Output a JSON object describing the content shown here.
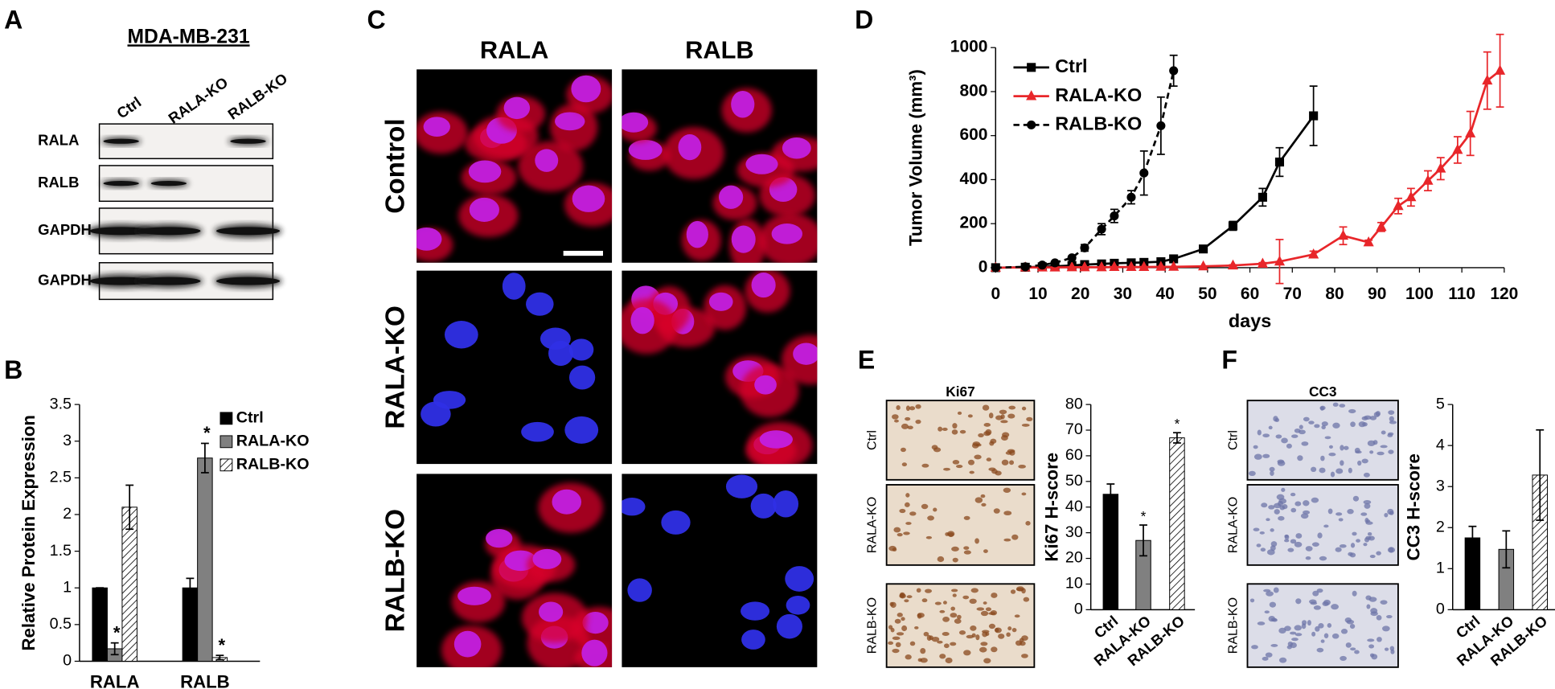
{
  "panels": {
    "A": {
      "label": "A",
      "title": "MDA-MB-231",
      "lanes": [
        "Ctrl",
        "RALA-KO",
        "RALB-KO"
      ],
      "blots": [
        {
          "name": "RALA",
          "bands": [
            true,
            false,
            true
          ]
        },
        {
          "name": "RALB",
          "bands": [
            true,
            true,
            false
          ]
        },
        {
          "name": "GAPDH",
          "bands": [
            true,
            true,
            true
          ]
        },
        {
          "name": "GAPDH",
          "bands": [
            true,
            true,
            true
          ]
        }
      ]
    },
    "C": {
      "label": "C",
      "columns": [
        "RALA",
        "RALB"
      ],
      "rows": [
        {
          "name": "Control",
          "red": [
            true,
            true
          ]
        },
        {
          "name": "RALA-KO",
          "red": [
            false,
            true
          ]
        },
        {
          "name": "RALB-KO",
          "red": [
            true,
            false
          ]
        }
      ]
    },
    "E": {
      "stain": "Ki67",
      "rows": [
        "Ctrl",
        "RALA-KO",
        "RALB-KO"
      ]
    },
    "F": {
      "stain": "CC3",
      "rows": [
        "Ctrl",
        "RALA-KO",
        "RALB-KO"
      ]
    }
  },
  "chart_data": [
    {
      "label": "B",
      "type": "grouped_bar",
      "ylabel": "Relative Protein Expression",
      "categories": [
        "RALA",
        "RALB"
      ],
      "series": [
        {
          "name": "Ctrl",
          "color": "#000000",
          "values": [
            1,
            1
          ],
          "errors": [
            0,
            0.13
          ],
          "significant": [
            false,
            false
          ]
        },
        {
          "name": "RALA-KO",
          "color": "#808080",
          "values": [
            0.17,
            2.77
          ],
          "errors": [
            0.08,
            0.2
          ],
          "significant": [
            true,
            true
          ]
        },
        {
          "name": "RALB-KO",
          "color": "#ffffff",
          "hatched": true,
          "values": [
            2.1,
            0.05
          ],
          "errors": [
            0.3,
            0.03
          ],
          "significant": [
            false,
            true
          ]
        }
      ],
      "ylim": [
        0,
        3.5
      ],
      "yticks": [
        0,
        0.5,
        1,
        1.5,
        2,
        2.5,
        3,
        3.5
      ],
      "significance_mark": "*",
      "legend": "upper right"
    },
    {
      "label": "D",
      "type": "line",
      "xlabel": "days",
      "ylabel": "Tumor Volume (mm³)",
      "series": [
        {
          "name": "Ctrl",
          "color": "#000000",
          "marker": "square",
          "dashed": false,
          "x": [
            0,
            7,
            11,
            14,
            18,
            21,
            25,
            28,
            32,
            35,
            39,
            42,
            49,
            56,
            63,
            67,
            75
          ],
          "values": [
            0,
            2,
            4,
            6,
            10,
            14,
            17,
            20,
            22,
            24,
            27,
            40,
            85,
            190,
            320,
            480,
            690
          ],
          "errors": [
            0,
            0,
            0,
            0,
            0,
            0,
            0,
            0,
            0,
            0,
            0,
            5,
            10,
            20,
            40,
            65,
            135
          ]
        },
        {
          "name": "RALA-KO",
          "color": "#e8262a",
          "marker": "triangle",
          "dashed": false,
          "x": [
            0,
            7,
            11,
            14,
            18,
            21,
            25,
            28,
            32,
            35,
            39,
            42,
            49,
            56,
            63,
            67,
            75,
            82,
            88,
            91,
            95,
            98,
            102,
            105,
            109,
            112,
            116,
            119
          ],
          "values": [
            0,
            1,
            1,
            1,
            2,
            2,
            2,
            3,
            3,
            3,
            4,
            4,
            6,
            10,
            18,
            28,
            60,
            145,
            115,
            185,
            280,
            320,
            395,
            450,
            535,
            610,
            850,
            895
          ],
          "errors": [
            0,
            0,
            0,
            0,
            0,
            0,
            0,
            0,
            0,
            0,
            0,
            0,
            0,
            3,
            5,
            100,
            15,
            40,
            10,
            20,
            35,
            40,
            45,
            50,
            60,
            100,
            130,
            165
          ]
        },
        {
          "name": "RALB-KO",
          "color": "#000000",
          "marker": "circle",
          "dashed": true,
          "x": [
            0,
            7,
            11,
            14,
            18,
            21,
            25,
            28,
            32,
            35,
            39,
            42
          ],
          "values": [
            0,
            4,
            12,
            22,
            45,
            90,
            175,
            235,
            320,
            430,
            645,
            895
          ],
          "errors": [
            0,
            0,
            0,
            5,
            8,
            15,
            25,
            30,
            30,
            100,
            130,
            70
          ]
        }
      ],
      "xlim": [
        0,
        120
      ],
      "xticks": [
        0,
        10,
        20,
        30,
        40,
        50,
        60,
        70,
        80,
        90,
        100,
        110,
        120
      ],
      "ylim": [
        0,
        1000
      ],
      "yticks": [
        0,
        200,
        400,
        600,
        800,
        1000
      ],
      "legend": "upper left"
    },
    {
      "label": "E",
      "type": "bar",
      "ylabel": "Ki67 H-score",
      "categories": [
        "Ctrl",
        "RALA-KO",
        "RALB-KO"
      ],
      "values": [
        45,
        27,
        67
      ],
      "errors": [
        4,
        6,
        2
      ],
      "colors": [
        "#000000",
        "#808080",
        "#ffffff"
      ],
      "hatched": [
        false,
        false,
        true
      ],
      "significant": [
        false,
        true,
        true
      ],
      "significance_mark": "*",
      "ylim": [
        0,
        80
      ],
      "yticks": [
        0,
        10,
        20,
        30,
        40,
        50,
        60,
        70,
        80
      ]
    },
    {
      "label": "F",
      "type": "bar",
      "ylabel": "CC3 H-score",
      "categories": [
        "Ctrl",
        "RALA-KO",
        "RALB-KO"
      ],
      "values": [
        1.75,
        1.47,
        3.28
      ],
      "errors": [
        0.28,
        0.45,
        1.1
      ],
      "colors": [
        "#000000",
        "#808080",
        "#ffffff"
      ],
      "hatched": [
        false,
        false,
        true
      ],
      "significant": [
        false,
        false,
        false
      ],
      "ylim": [
        0,
        5
      ],
      "yticks": [
        0,
        1,
        2,
        3,
        4,
        5
      ]
    }
  ]
}
